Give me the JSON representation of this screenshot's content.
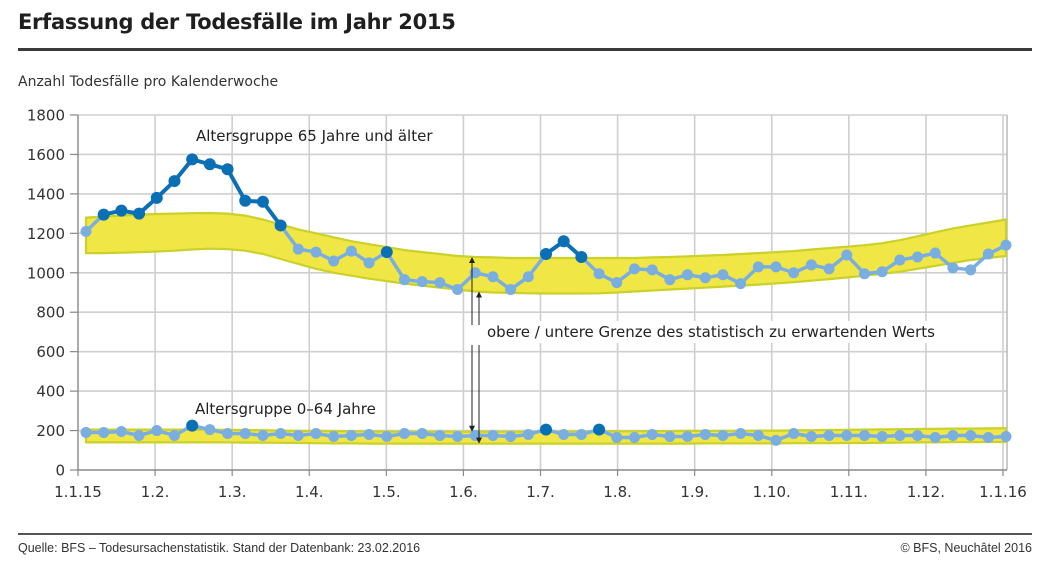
{
  "header": {
    "title": "Erfassung der Todesfälle im Jahr 2015",
    "subtitle": "Anzahl Todesfälle pro Kalenderwoche"
  },
  "footer": {
    "source": "Quelle: BFS – Todesursachenstatistik. Stand der Datenbank: 23.02.2016",
    "copyright": "© BFS, Neuchâtel 2016"
  },
  "colors": {
    "band_fill": "#f0e646",
    "band_edge": "#c9d12a",
    "line_normal": "#7aaee0",
    "line_excess": "#0a6fb5",
    "grid": "#cfcfcf",
    "axis": "#888888",
    "text": "#222222"
  },
  "chart_data": {
    "type": "line",
    "title": "Erfassung der Todesfälle im Jahr 2015",
    "xlabel": "",
    "ylabel": "Anzahl Todesfälle pro Kalenderwoche",
    "ylim": [
      0,
      1800
    ],
    "yticks": [
      0,
      200,
      400,
      600,
      800,
      1000,
      1200,
      1400,
      1600,
      1800
    ],
    "x_range_months": [
      0,
      12
    ],
    "xticks": [
      {
        "label": "1.1.15",
        "month": 0
      },
      {
        "label": "1.2.",
        "month": 1
      },
      {
        "label": "1.3.",
        "month": 2
      },
      {
        "label": "1.4.",
        "month": 3
      },
      {
        "label": "1.5.",
        "month": 4
      },
      {
        "label": "1.6.",
        "month": 5
      },
      {
        "label": "1.7.",
        "month": 6
      },
      {
        "label": "1.8.",
        "month": 7
      },
      {
        "label": "1.9.",
        "month": 8
      },
      {
        "label": "1.10.",
        "month": 9
      },
      {
        "label": "1.11.",
        "month": 10
      },
      {
        "label": "1.12.",
        "month": 11
      },
      {
        "label": "1.1.16",
        "month": 12
      }
    ],
    "grid": true,
    "weeks": 53,
    "series": [
      {
        "name": "Altersgruppe 65 Jahre und älter",
        "values": [
          1210,
          1295,
          1315,
          1300,
          1380,
          1465,
          1575,
          1550,
          1525,
          1365,
          1360,
          1240,
          1120,
          1105,
          1060,
          1110,
          1050,
          1105,
          965,
          955,
          950,
          915,
          1000,
          980,
          915,
          980,
          1095,
          1160,
          1080,
          995,
          950,
          1020,
          1015,
          965,
          990,
          975,
          990,
          945,
          1030,
          1030,
          1000,
          1040,
          1020,
          1090,
          995,
          1005,
          1065,
          1080,
          1100,
          1025,
          1015,
          1095,
          1140
        ],
        "excess": [
          false,
          true,
          true,
          true,
          true,
          true,
          true,
          true,
          true,
          true,
          true,
          true,
          false,
          false,
          false,
          false,
          false,
          true,
          false,
          false,
          false,
          false,
          false,
          false,
          false,
          false,
          true,
          true,
          true,
          false,
          false,
          false,
          false,
          false,
          false,
          false,
          false,
          false,
          false,
          false,
          false,
          false,
          false,
          false,
          false,
          false,
          false,
          false,
          false,
          false,
          false,
          false,
          false
        ],
        "band_upper": [
          1280,
          1285,
          1290,
          1295,
          1298,
          1300,
          1302,
          1303,
          1300,
          1290,
          1270,
          1245,
          1220,
          1200,
          1180,
          1160,
          1145,
          1130,
          1115,
          1105,
          1095,
          1085,
          1080,
          1078,
          1075,
          1075,
          1075,
          1075,
          1075,
          1075,
          1075,
          1075,
          1078,
          1080,
          1083,
          1087,
          1090,
          1095,
          1100,
          1105,
          1110,
          1118,
          1125,
          1132,
          1140,
          1150,
          1165,
          1185,
          1205,
          1225,
          1240,
          1255,
          1270
        ],
        "band_lower": [
          1100,
          1100,
          1102,
          1105,
          1108,
          1112,
          1118,
          1122,
          1120,
          1112,
          1095,
          1070,
          1045,
          1020,
          1000,
          985,
          970,
          958,
          945,
          935,
          925,
          915,
          905,
          900,
          898,
          896,
          895,
          895,
          895,
          896,
          900,
          905,
          910,
          915,
          920,
          925,
          930,
          935,
          940,
          946,
          952,
          960,
          968,
          976,
          985,
          995,
          1005,
          1020,
          1035,
          1050,
          1065,
          1075,
          1085
        ]
      },
      {
        "name": "Altersgruppe 0–64 Jahre",
        "values": [
          190,
          190,
          195,
          175,
          200,
          175,
          225,
          205,
          185,
          185,
          175,
          185,
          175,
          185,
          170,
          175,
          180,
          170,
          185,
          185,
          175,
          170,
          175,
          175,
          170,
          180,
          205,
          180,
          180,
          205,
          165,
          165,
          180,
          170,
          170,
          180,
          175,
          185,
          175,
          150,
          185,
          170,
          175,
          175,
          175,
          170,
          175,
          175,
          165,
          175,
          175,
          165,
          170
        ],
        "excess": [
          false,
          false,
          false,
          false,
          false,
          false,
          true,
          false,
          false,
          false,
          false,
          false,
          false,
          false,
          false,
          false,
          false,
          false,
          false,
          false,
          false,
          false,
          false,
          false,
          false,
          false,
          true,
          false,
          false,
          true,
          false,
          false,
          false,
          false,
          false,
          false,
          false,
          false,
          false,
          false,
          false,
          false,
          false,
          false,
          false,
          false,
          false,
          false,
          false,
          false,
          false,
          false,
          false
        ],
        "band_upper": [
          205,
          205,
          205,
          205,
          205,
          205,
          205,
          205,
          204,
          203,
          202,
          200,
          199,
          198,
          197,
          196,
          195,
          195,
          194,
          194,
          194,
          194,
          194,
          194,
          194,
          194,
          194,
          195,
          195,
          196,
          196,
          196,
          197,
          197,
          198,
          198,
          199,
          199,
          200,
          200,
          201,
          202,
          203,
          204,
          205,
          206,
          207,
          208,
          209,
          210,
          210,
          211,
          212
        ],
        "band_lower": [
          140,
          140,
          140,
          140,
          140,
          140,
          140,
          140,
          140,
          139,
          139,
          138,
          137,
          136,
          135,
          135,
          134,
          134,
          134,
          134,
          134,
          134,
          134,
          134,
          134,
          134,
          134,
          134,
          134,
          134,
          134,
          134,
          134,
          134,
          134,
          135,
          135,
          135,
          135,
          135,
          136,
          136,
          136,
          137,
          137,
          138,
          139,
          140,
          140,
          141,
          141,
          142,
          142
        ]
      }
    ],
    "annotations": [
      {
        "text": "Altersgruppe 65 Jahre und älter",
        "near": "upper series, top-left"
      },
      {
        "text": "Altersgruppe 0–64 Jahre",
        "near": "lower series, left"
      },
      {
        "text": "obere / untere Grenze des statistisch zu erwartenden Werts",
        "near": "center-right, with double arrows pointing to band edges"
      }
    ]
  }
}
